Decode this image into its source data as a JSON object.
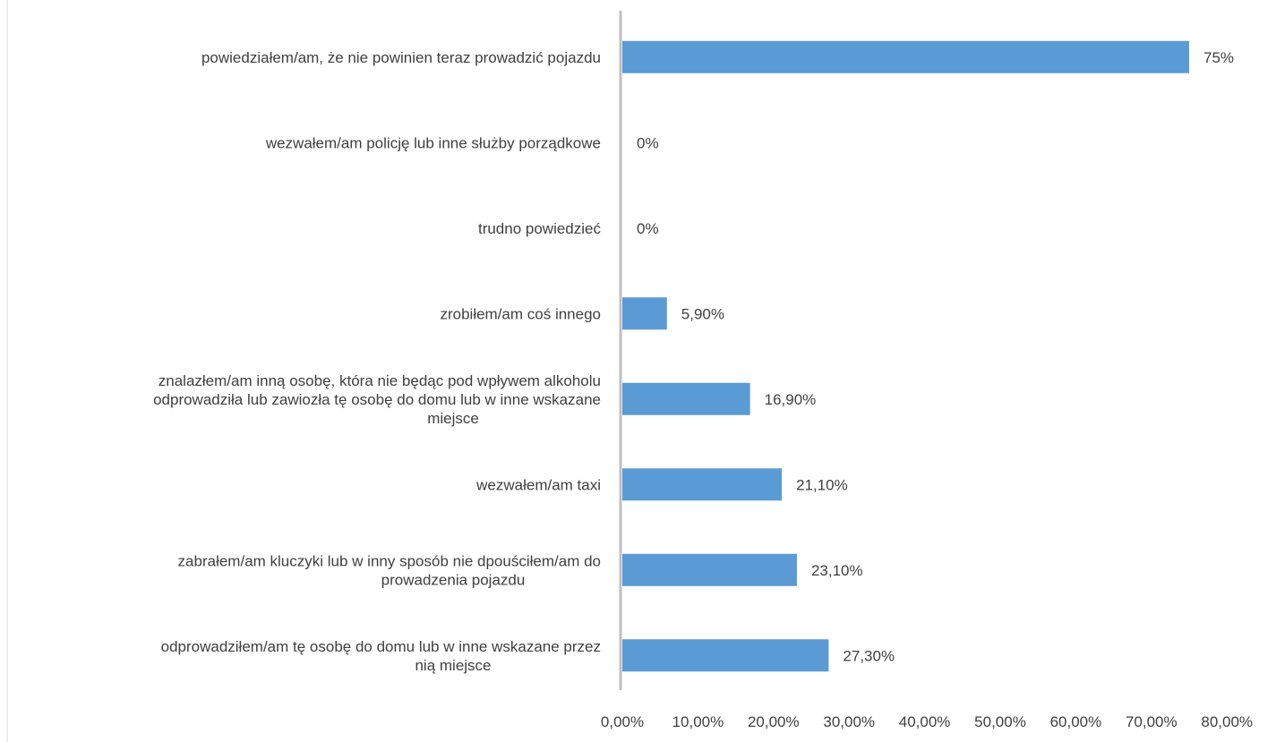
{
  "chart_data": {
    "type": "bar",
    "orientation": "horizontal",
    "categories": [
      [
        "powiedziałem/am, że nie powinien teraz prowadzić pojazdu"
      ],
      [
        "wezwałem/am policję lub inne służby porządkowe"
      ],
      [
        "trudno powiedzieć"
      ],
      [
        "zrobiłem/am coś innego"
      ],
      [
        "znalazłem/am inną osobę, która nie będąc pod wpływem alkoholu",
        "odprowadziła lub zawiozła tę osobę do domu lub w inne wskazane",
        "miejsce"
      ],
      [
        "wezwałem/am taxi"
      ],
      [
        "zabrałem/am kluczyki lub w inny sposób nie dpouściłem/am do",
        "prowadzenia pojazdu"
      ],
      [
        "odprowadziłem/am tę osobę do domu lub w inne wskazane przez",
        "nią miejsce"
      ]
    ],
    "values": [
      75,
      0,
      0,
      5.9,
      16.9,
      21.1,
      23.1,
      27.3
    ],
    "data_labels": [
      "75%",
      "0%",
      "0%",
      "5,90%",
      "16,90%",
      "21,10%",
      "23,10%",
      "27,30%"
    ],
    "xlim": [
      0,
      80
    ],
    "x_ticks": [
      0,
      10,
      20,
      30,
      40,
      50,
      60,
      70,
      80
    ],
    "x_tick_labels": [
      "0,00%",
      "10,00%",
      "20,00%",
      "30,00%",
      "40,00%",
      "50,00%",
      "60,00%",
      "70,00%",
      "80,00%"
    ],
    "bar_color": "#5b9bd5",
    "axis_color": "#bfbfbf",
    "text_color": "#404040",
    "grid": false,
    "legend": false
  }
}
